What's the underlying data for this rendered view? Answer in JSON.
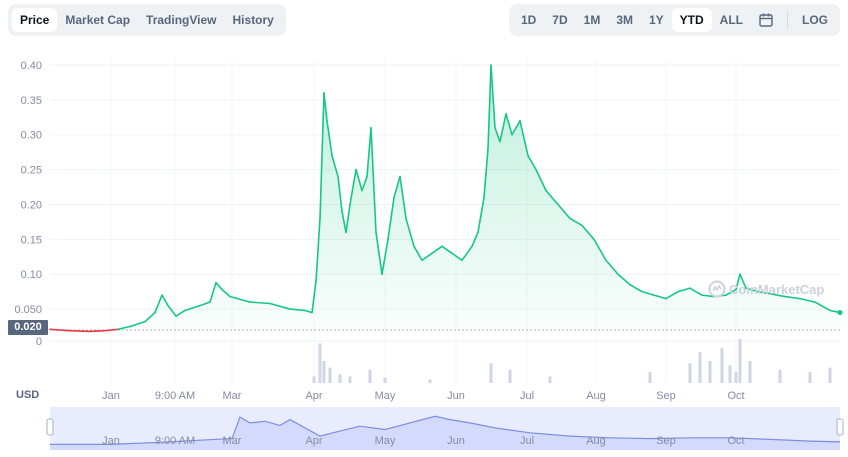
{
  "tabs_left": [
    {
      "label": "Price",
      "active": true
    },
    {
      "label": "Market Cap",
      "active": false
    },
    {
      "label": "TradingView",
      "active": false
    },
    {
      "label": "History",
      "active": false
    }
  ],
  "tabs_right": [
    {
      "label": "1D",
      "active": false
    },
    {
      "label": "7D",
      "active": false
    },
    {
      "label": "1M",
      "active": false
    },
    {
      "label": "3M",
      "active": false
    },
    {
      "label": "1Y",
      "active": false
    },
    {
      "label": "YTD",
      "active": true
    },
    {
      "label": "ALL",
      "active": false
    }
  ],
  "calendar_icon": "calendar-icon",
  "log_label": "LOG",
  "currency_label": "USD",
  "current_price_label": "0.020",
  "watermark": "CoinMarketCap",
  "colors": {
    "up": "#16c784",
    "down": "#ea3943",
    "volume": "#cfd6e4",
    "navigator": "#7b8fe0",
    "navigator_fill": "#e8ecfd"
  },
  "chart_data": {
    "type": "area",
    "title": "",
    "xlabel": "",
    "ylabel": "",
    "y_ticks": [
      "0.40",
      "0.35",
      "0.30",
      "0.25",
      "0.20",
      "0.15",
      "0.10",
      "0.050",
      "0.020"
    ],
    "y_tick_values": [
      0.4,
      0.35,
      0.3,
      0.25,
      0.2,
      0.15,
      0.1,
      0.05,
      0.02
    ],
    "ylim": [
      0.02,
      0.4
    ],
    "volume_axis_tick": "0",
    "x_ticks": [
      "Jan",
      "9:00 AM",
      "Mar",
      "Apr",
      "May",
      "Jun",
      "Jul",
      "Aug",
      "Sep",
      "Oct"
    ],
    "x_tick_days": [
      61,
      125,
      182,
      264,
      335,
      406,
      477,
      546,
      616,
      686
    ],
    "xlim": [
      0,
      790
    ],
    "navigator_x_ticks": [
      "Jan",
      "9:00 AM",
      "Mar",
      "Apr",
      "May",
      "Jun",
      "Jul",
      "Aug",
      "Sep",
      "Oct"
    ],
    "grid": true,
    "baseline_price": 0.02,
    "price": [
      [
        0,
        0.021
      ],
      [
        20,
        0.019
      ],
      [
        40,
        0.018
      ],
      [
        55,
        0.019
      ],
      [
        68,
        0.021
      ],
      [
        80,
        0.025
      ],
      [
        95,
        0.032
      ],
      [
        105,
        0.045
      ],
      [
        112,
        0.07
      ],
      [
        118,
        0.055
      ],
      [
        126,
        0.04
      ],
      [
        135,
        0.048
      ],
      [
        150,
        0.055
      ],
      [
        160,
        0.06
      ],
      [
        166,
        0.088
      ],
      [
        172,
        0.078
      ],
      [
        180,
        0.068
      ],
      [
        200,
        0.06
      ],
      [
        220,
        0.058
      ],
      [
        240,
        0.05
      ],
      [
        255,
        0.048
      ],
      [
        262,
        0.045
      ],
      [
        266,
        0.09
      ],
      [
        270,
        0.18
      ],
      [
        274,
        0.36
      ],
      [
        277,
        0.32
      ],
      [
        282,
        0.27
      ],
      [
        288,
        0.24
      ],
      [
        292,
        0.19
      ],
      [
        296,
        0.16
      ],
      [
        300,
        0.2
      ],
      [
        306,
        0.25
      ],
      [
        312,
        0.22
      ],
      [
        317,
        0.24
      ],
      [
        321,
        0.31
      ],
      [
        326,
        0.16
      ],
      [
        332,
        0.1
      ],
      [
        338,
        0.15
      ],
      [
        344,
        0.21
      ],
      [
        350,
        0.24
      ],
      [
        356,
        0.18
      ],
      [
        364,
        0.14
      ],
      [
        372,
        0.12
      ],
      [
        382,
        0.13
      ],
      [
        392,
        0.14
      ],
      [
        402,
        0.13
      ],
      [
        412,
        0.12
      ],
      [
        422,
        0.14
      ],
      [
        428,
        0.16
      ],
      [
        434,
        0.21
      ],
      [
        438,
        0.28
      ],
      [
        441,
        0.4
      ],
      [
        445,
        0.31
      ],
      [
        450,
        0.29
      ],
      [
        456,
        0.33
      ],
      [
        462,
        0.3
      ],
      [
        470,
        0.32
      ],
      [
        478,
        0.27
      ],
      [
        486,
        0.25
      ],
      [
        496,
        0.22
      ],
      [
        508,
        0.2
      ],
      [
        520,
        0.18
      ],
      [
        532,
        0.17
      ],
      [
        544,
        0.15
      ],
      [
        556,
        0.12
      ],
      [
        568,
        0.1
      ],
      [
        580,
        0.085
      ],
      [
        592,
        0.075
      ],
      [
        604,
        0.07
      ],
      [
        616,
        0.065
      ],
      [
        628,
        0.075
      ],
      [
        640,
        0.08
      ],
      [
        652,
        0.07
      ],
      [
        664,
        0.068
      ],
      [
        676,
        0.07
      ],
      [
        686,
        0.078
      ],
      [
        690,
        0.1
      ],
      [
        696,
        0.08
      ],
      [
        708,
        0.075
      ],
      [
        720,
        0.072
      ],
      [
        735,
        0.068
      ],
      [
        750,
        0.065
      ],
      [
        765,
        0.06
      ],
      [
        780,
        0.048
      ],
      [
        790,
        0.045
      ]
    ],
    "volume": [
      [
        264,
        0.15
      ],
      [
        270,
        0.9
      ],
      [
        274,
        0.5
      ],
      [
        280,
        0.35
      ],
      [
        290,
        0.2
      ],
      [
        300,
        0.15
      ],
      [
        320,
        0.3
      ],
      [
        335,
        0.12
      ],
      [
        380,
        0.08
      ],
      [
        441,
        0.45
      ],
      [
        460,
        0.3
      ],
      [
        500,
        0.15
      ],
      [
        600,
        0.25
      ],
      [
        640,
        0.45
      ],
      [
        650,
        0.7
      ],
      [
        660,
        0.5
      ],
      [
        672,
        0.8
      ],
      [
        680,
        0.4
      ],
      [
        686,
        0.25
      ],
      [
        690,
        1.0
      ],
      [
        700,
        0.5
      ],
      [
        730,
        0.3
      ],
      [
        760,
        0.25
      ],
      [
        780,
        0.35
      ]
    ],
    "navigator": [
      [
        0,
        0.02
      ],
      [
        60,
        0.02
      ],
      [
        120,
        0.05
      ],
      [
        150,
        0.07
      ],
      [
        182,
        0.09
      ],
      [
        190,
        0.35
      ],
      [
        200,
        0.28
      ],
      [
        215,
        0.3
      ],
      [
        230,
        0.25
      ],
      [
        240,
        0.32
      ],
      [
        255,
        0.22
      ],
      [
        270,
        0.12
      ],
      [
        290,
        0.18
      ],
      [
        310,
        0.24
      ],
      [
        335,
        0.2
      ],
      [
        360,
        0.28
      ],
      [
        385,
        0.36
      ],
      [
        400,
        0.32
      ],
      [
        420,
        0.28
      ],
      [
        445,
        0.22
      ],
      [
        480,
        0.16
      ],
      [
        520,
        0.12
      ],
      [
        560,
        0.1
      ],
      [
        600,
        0.09
      ],
      [
        640,
        0.1
      ],
      [
        680,
        0.1
      ],
      [
        720,
        0.08
      ],
      [
        760,
        0.06
      ],
      [
        790,
        0.05
      ]
    ]
  }
}
